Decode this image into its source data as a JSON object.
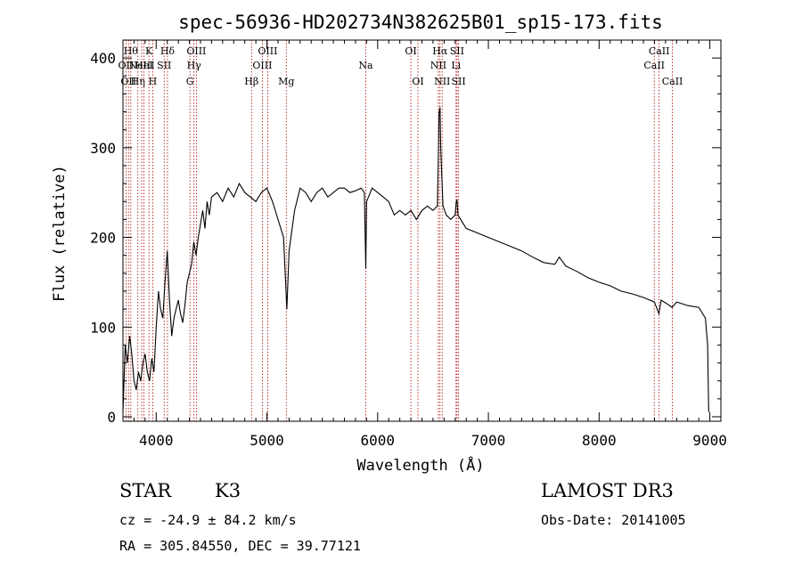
{
  "info": {
    "object_type": "STAR",
    "subclass": "K3",
    "survey": "LAMOST DR3",
    "velocity": "cz = -24.9 ± 84.2 km/s",
    "obs_date": "Obs-Date: 20141005",
    "coords": "RA = 305.84550, DEC =  39.77121"
  },
  "chart_data": {
    "type": "line",
    "title": "spec-56936-HD202734N382625B01_sp15-173.fits",
    "xlabel": "Wavelength (Å)",
    "ylabel": "Flux (relative)",
    "xlim": [
      3700,
      9100
    ],
    "ylim": [
      -5,
      420
    ],
    "xticks": [
      4000,
      5000,
      6000,
      7000,
      8000,
      9000
    ],
    "yticks": [
      0,
      100,
      200,
      300,
      400
    ],
    "grid": false,
    "line_color": "#000000",
    "marker_color": "#aa0000",
    "series": [
      {
        "x": [
          3700,
          3720,
          3740,
          3760,
          3780,
          3800,
          3820,
          3840,
          3860,
          3880,
          3900,
          3920,
          3940,
          3960,
          3980,
          4000,
          4020,
          4040,
          4060,
          4080,
          4100,
          4120,
          4140,
          4160,
          4180,
          4200,
          4220,
          4240,
          4260,
          4280,
          4300,
          4320,
          4340,
          4360,
          4380,
          4400,
          4420,
          4440,
          4460,
          4480,
          4500,
          4550,
          4600,
          4650,
          4700,
          4750,
          4800,
          4850,
          4900,
          4950,
          5000,
          5050,
          5100,
          5150,
          5180,
          5200,
          5250,
          5300,
          5350,
          5400,
          5450,
          5500,
          5550,
          5600,
          5650,
          5700,
          5750,
          5800,
          5850,
          5880,
          5893,
          5900,
          5950,
          6000,
          6050,
          6100,
          6150,
          6200,
          6250,
          6300,
          6350,
          6400,
          6450,
          6500,
          6540,
          6555,
          6563,
          6570,
          6590,
          6620,
          6660,
          6700,
          6710,
          6717,
          6725,
          6760,
          6800,
          6900,
          7000,
          7100,
          7200,
          7300,
          7400,
          7500,
          7600,
          7640,
          7700,
          7800,
          7900,
          8000,
          8100,
          8200,
          8300,
          8400,
          8500,
          8540,
          8560,
          8600,
          8660,
          8700,
          8800,
          8900,
          8960,
          8980,
          8990
        ],
        "values": [
          5,
          80,
          60,
          90,
          70,
          40,
          30,
          50,
          40,
          60,
          70,
          50,
          40,
          65,
          50,
          100,
          140,
          120,
          110,
          150,
          185,
          130,
          90,
          110,
          120,
          130,
          115,
          105,
          125,
          150,
          160,
          170,
          195,
          180,
          200,
          215,
          230,
          210,
          240,
          225,
          245,
          250,
          240,
          255,
          245,
          260,
          250,
          245,
          240,
          250,
          255,
          240,
          220,
          200,
          120,
          185,
          230,
          255,
          250,
          240,
          250,
          255,
          245,
          250,
          255,
          255,
          250,
          252,
          255,
          250,
          165,
          240,
          255,
          250,
          245,
          240,
          225,
          230,
          225,
          230,
          220,
          230,
          235,
          230,
          235,
          340,
          345,
          300,
          235,
          225,
          220,
          225,
          240,
          242,
          225,
          218,
          210,
          205,
          200,
          195,
          190,
          185,
          178,
          172,
          170,
          178,
          168,
          162,
          155,
          150,
          146,
          140,
          137,
          133,
          128,
          115,
          130,
          127,
          122,
          128,
          124,
          122,
          110,
          80,
          5
        ]
      }
    ],
    "line_markers": [
      {
        "x": 3727,
        "name": "OII",
        "row": 2
      },
      {
        "x": 3750,
        "name": "OII",
        "row": 3
      },
      {
        "x": 3771,
        "name": "Hθ",
        "row": 1
      },
      {
        "x": 3835,
        "name": "Hη",
        "row": 3
      },
      {
        "x": 3869,
        "name": "NeIII",
        "row": 2
      },
      {
        "x": 3889,
        "name": "HeI",
        "row": 2
      },
      {
        "x": 3934,
        "name": "K",
        "row": 1
      },
      {
        "x": 3969,
        "name": "H",
        "row": 3
      },
      {
        "x": 4072,
        "name": "SII",
        "row": 2
      },
      {
        "x": 4102,
        "name": "Hδ",
        "row": 1
      },
      {
        "x": 4305,
        "name": "G",
        "row": 3
      },
      {
        "x": 4341,
        "name": "Hγ",
        "row": 2
      },
      {
        "x": 4363,
        "name": "OIII",
        "row": 1
      },
      {
        "x": 4861,
        "name": "Hβ",
        "row": 3
      },
      {
        "x": 4959,
        "name": "OIII",
        "row": 2
      },
      {
        "x": 5007,
        "name": "OIII",
        "row": 1
      },
      {
        "x": 5175,
        "name": "Mg",
        "row": 3
      },
      {
        "x": 5893,
        "name": "Na",
        "row": 2
      },
      {
        "x": 6300,
        "name": "OI",
        "row": 1
      },
      {
        "x": 6364,
        "name": "OI",
        "row": 3
      },
      {
        "x": 6548,
        "name": "NII",
        "row": 2
      },
      {
        "x": 6563,
        "name": "Hα",
        "row": 1
      },
      {
        "x": 6583,
        "name": "NII",
        "row": 3
      },
      {
        "x": 6708,
        "name": "Li",
        "row": 2
      },
      {
        "x": 6717,
        "name": "SII",
        "row": 1
      },
      {
        "x": 6731,
        "name": "SII",
        "row": 3
      },
      {
        "x": 8498,
        "name": "CaII",
        "row": 2
      },
      {
        "x": 8542,
        "name": "CaII",
        "row": 1
      },
      {
        "x": 8662,
        "name": "CaII",
        "row": 3
      }
    ]
  }
}
